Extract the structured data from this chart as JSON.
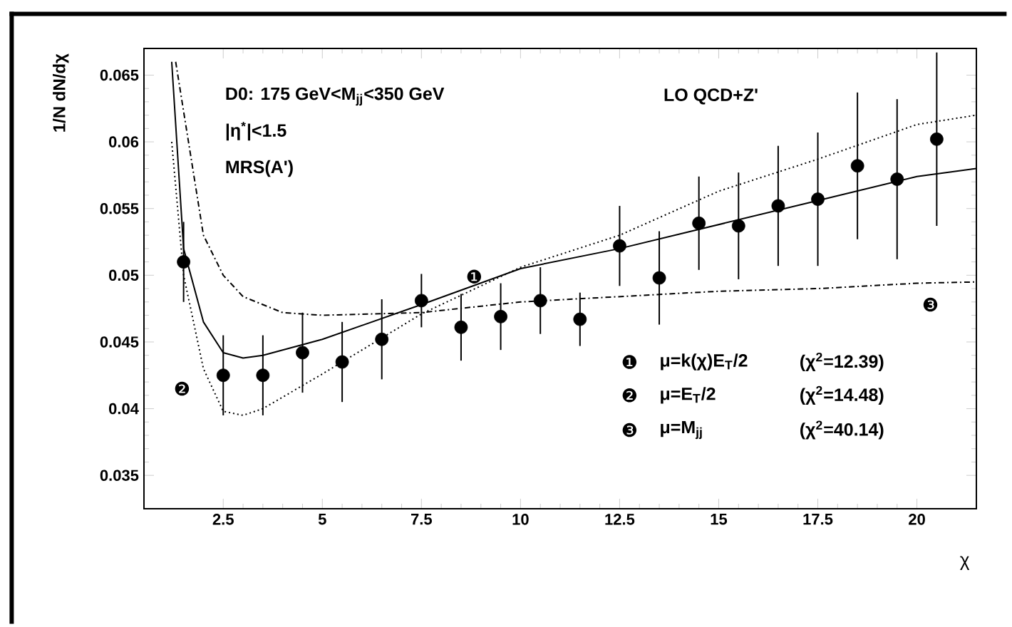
{
  "chart_data": {
    "type": "scatter",
    "xlabel": "χ",
    "ylabel": "1/N dN/dχ",
    "xlim": [
      0.5,
      21.5
    ],
    "ylim": [
      0.0325,
      0.067
    ],
    "xticks": [
      2.5,
      5,
      7.5,
      10,
      12.5,
      15,
      17.5,
      20
    ],
    "yticks": [
      0.035,
      0.04,
      0.045,
      0.05,
      0.055,
      0.06,
      0.065
    ],
    "series": [
      {
        "color": "#000000",
        "marker": "circle",
        "x": [
          1.5,
          2.5,
          3.5,
          4.5,
          5.5,
          6.5,
          7.5,
          8.5,
          9.5,
          10.5,
          11.5,
          12.5,
          13.5,
          14.5,
          15.5,
          16.5,
          17.5,
          18.5,
          19.5,
          20.5
        ],
        "values": [
          0.051,
          0.0425,
          0.0425,
          0.0442,
          0.0435,
          0.0452,
          0.0481,
          0.0461,
          0.0469,
          0.0481,
          0.0467,
          0.0522,
          0.0498,
          0.0539,
          0.0537,
          0.0552,
          0.0557,
          0.0582,
          0.0572,
          0.0602
        ],
        "errors": [
          0.003,
          0.003,
          0.003,
          0.003,
          0.003,
          0.003,
          0.002,
          0.0025,
          0.0025,
          0.0025,
          0.002,
          0.003,
          0.0035,
          0.0035,
          0.004,
          0.0045,
          0.005,
          0.0055,
          0.006,
          0.0065
        ]
      },
      {
        "type": "line",
        "color": "#000000",
        "marker": "none",
        "line_style": "solid",
        "x": [
          1.2,
          1.5,
          2,
          2.5,
          3,
          3.5,
          5,
          7.5,
          10,
          12.5,
          15,
          17.5,
          20,
          21.5
        ],
        "values": [
          0.066,
          0.052,
          0.0465,
          0.0442,
          0.0438,
          0.044,
          0.0452,
          0.0478,
          0.0505,
          0.052,
          0.0538,
          0.0556,
          0.0574,
          0.058
        ]
      },
      {
        "type": "line",
        "color": "#000000",
        "marker": "none",
        "line_style": "dotted",
        "x": [
          1.2,
          1.5,
          2,
          2.5,
          3,
          3.5,
          5,
          7.5,
          10,
          12.5,
          15,
          17.5,
          20,
          21.5
        ],
        "values": [
          0.06,
          0.05,
          0.043,
          0.0398,
          0.0395,
          0.04,
          0.0426,
          0.0471,
          0.0506,
          0.053,
          0.0563,
          0.0587,
          0.0613,
          0.062
        ]
      },
      {
        "type": "line",
        "color": "#000000",
        "marker": "none",
        "line_style": "dashed",
        "x": [
          1.3,
          2,
          2.5,
          3,
          4,
          5,
          7.5,
          10,
          12.5,
          15,
          17.5,
          20,
          21.5
        ],
        "values": [
          0.066,
          0.053,
          0.05,
          0.0484,
          0.0472,
          0.047,
          0.0472,
          0.048,
          0.0484,
          0.0488,
          0.049,
          0.0494,
          0.0495
        ]
      }
    ],
    "annotations": [
      "D0: 175 GeV<M$_{jj}$<350 GeV",
      "|η$^{*}$|<1.5",
      "MRS(A')",
      "LO QCD+Z'",
      "❶",
      "μ=k(χ)E$_{T}$/2",
      "(χ$^{2}$=12.39)",
      "❷",
      "μ=E$_{T}$/2",
      "(χ$^{2}$=14.48)",
      "❸",
      "μ=M$_{jj}$",
      "(χ$^{2}$=40.14)",
      "❶",
      "❷",
      "❸"
    ],
    "grid": false
  }
}
